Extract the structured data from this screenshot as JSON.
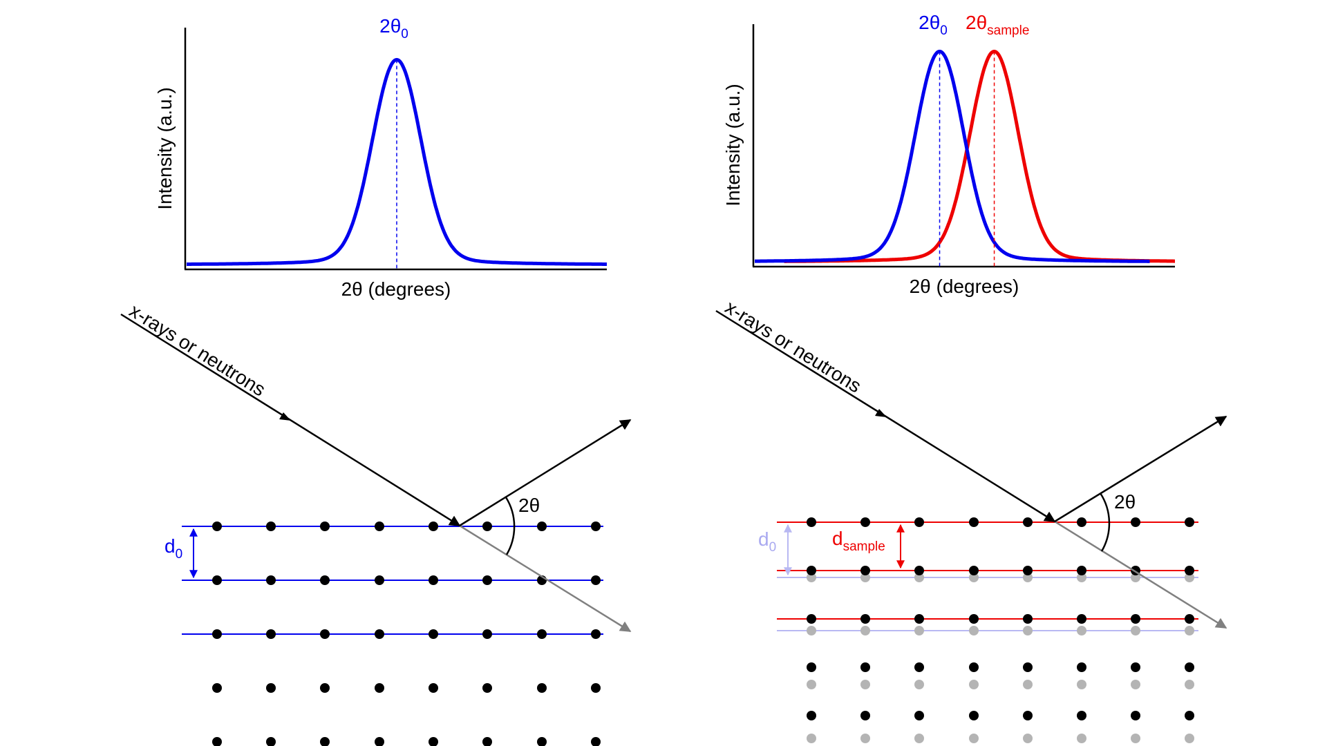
{
  "colors": {
    "reference": "#0000ee",
    "sample": "#ee0000",
    "lattice_dot": "#000000",
    "shifted_dot": "#b4b4b4",
    "faded_line": "#b8b8f2",
    "faded_label": "#a9a9f0",
    "transmitted_beam": "#808080",
    "beam": "#000000"
  },
  "left_panel": {
    "ylabel": "Intensity (a.u.)",
    "xlabel": "2θ (degrees)",
    "peak_label": {
      "main": "2θ",
      "sub": "0"
    },
    "beam_label": "x-rays or neutrons",
    "angle_label": "2θ",
    "spacing_label": {
      "main": "d",
      "sub": "0"
    }
  },
  "right_panel": {
    "ylabel": "Intensity (a.u.)",
    "xlabel": "2θ (degrees)",
    "peak_label_ref": {
      "main": "2θ",
      "sub": "0"
    },
    "peak_label_sample": {
      "main": "2θ",
      "sub": "sample"
    },
    "beam_label": "x-rays or neutrons",
    "angle_label": "2θ",
    "spacing_label_ref": {
      "main": "d",
      "sub": "0"
    },
    "spacing_label_sample": {
      "main": "d",
      "sub": "sample"
    }
  },
  "chart_data": [
    {
      "type": "line",
      "title": "",
      "xlabel": "2θ (degrees)",
      "ylabel": "Intensity (a.u.)",
      "xlim": [
        0,
        100
      ],
      "ylim": [
        0,
        100
      ],
      "ticks": "none",
      "series": [
        {
          "name": "2θ0",
          "peak_x": 50,
          "peak_height": 90,
          "baseline": 2,
          "color": "#0000ee"
        }
      ],
      "annotations": [
        {
          "text": "2θ0",
          "x": 50,
          "style": "dashed vertical marker at peak"
        }
      ]
    },
    {
      "type": "line",
      "title": "",
      "xlabel": "2θ (degrees)",
      "ylabel": "Intensity (a.u.)",
      "xlim": [
        0,
        100
      ],
      "ylim": [
        0,
        100
      ],
      "ticks": "none",
      "series": [
        {
          "name": "2θ0",
          "peak_x": 44,
          "peak_height": 91,
          "baseline": 2,
          "color": "#0000ee"
        },
        {
          "name": "2θsample",
          "peak_x": 57,
          "peak_height": 91,
          "baseline": 2,
          "color": "#ee0000"
        }
      ],
      "annotations": [
        {
          "text": "2θ0",
          "x": 44,
          "style": "dashed vertical marker at peak"
        },
        {
          "text": "2θsample",
          "x": 57,
          "style": "dashed vertical marker at peak"
        }
      ]
    }
  ]
}
